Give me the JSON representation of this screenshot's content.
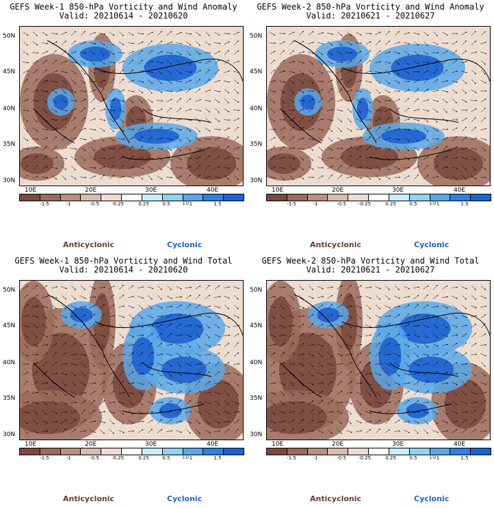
{
  "panels": [
    {
      "title": "GEFS Week-1 850-hPa Vorticity and Wind Anomaly",
      "valid": "Valid: 20210614 - 20210620",
      "kind": "anomaly"
    },
    {
      "title": "GEFS Week-2 850-hPa Vorticity and Wind Anomaly",
      "valid": "Valid: 20210621 - 20210627",
      "kind": "anomaly"
    },
    {
      "title": "GEFS Week-1 850-hPa Vorticity and Wind Total",
      "valid": "Valid: 20210614 - 20210620",
      "kind": "total"
    },
    {
      "title": "GEFS Week-2 850-hPa Vorticity and Wind Total",
      "valid": "Valid: 20210621 - 20210627",
      "kind": "total"
    }
  ],
  "latitude_labels": [
    "50N",
    "45N",
    "40N",
    "35N",
    "30N"
  ],
  "longitude_labels": [
    "10E",
    "20E",
    "30E",
    "40E"
  ],
  "colorbar": {
    "ticks": [
      "-1.5",
      "-1",
      "-0.5",
      "-0.25",
      "0.25",
      "0.5",
      "1",
      "1.5"
    ],
    "unit_label": "10",
    "colors": [
      "#7a4a3e",
      "#9a6a5c",
      "#b88f80",
      "#d8bcad",
      "#ecdcd2",
      "#ffffff",
      "#c8ecfa",
      "#8fd2f2",
      "#5aa8e8",
      "#2f7fe0",
      "#1e62d0"
    ]
  },
  "legend": {
    "anticyclonic": "Anticyclonic",
    "cyclonic": "Cyclonic"
  },
  "colors": {
    "anticyclonic": "#6b3a2e",
    "cyclonic": "#1a64c8"
  }
}
